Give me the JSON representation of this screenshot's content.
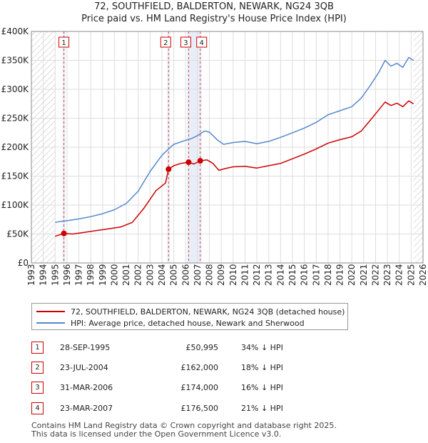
{
  "title_line1": "72, SOUTHFIELD, BALDERTON, NEWARK, NG24 3QB",
  "title_line2": "Price paid vs. HM Land Registry's House Price Index (HPI)",
  "colors": {
    "property": "#cc0000",
    "hpi": "#5588cc",
    "marker_box": "#cc0000",
    "shade": "#e8eef7"
  },
  "chart_data": {
    "type": "line",
    "xlim": [
      1993,
      2026
    ],
    "ylim": [
      0,
      400000
    ],
    "x_ticks": [
      "1993",
      "1994",
      "1995",
      "1996",
      "1997",
      "1998",
      "1999",
      "2000",
      "2001",
      "2002",
      "2003",
      "2004",
      "2005",
      "2006",
      "2007",
      "2008",
      "2009",
      "2010",
      "2011",
      "2012",
      "2013",
      "2014",
      "2015",
      "2016",
      "2017",
      "2018",
      "2019",
      "2020",
      "2021",
      "2022",
      "2023",
      "2024",
      "2025",
      "2026"
    ],
    "y_ticks": [
      {
        "value": 0,
        "label": "£0"
      },
      {
        "value": 50000,
        "label": "£50K"
      },
      {
        "value": 100000,
        "label": "£100K"
      },
      {
        "value": 150000,
        "label": "£150K"
      },
      {
        "value": 200000,
        "label": "£200K"
      },
      {
        "value": 250000,
        "label": "£250K"
      },
      {
        "value": 300000,
        "label": "£300K"
      },
      {
        "value": 350000,
        "label": "£350K"
      },
      {
        "value": 400000,
        "label": "£400K"
      }
    ],
    "hatched_ranges": [
      [
        1993,
        1995.0
      ],
      [
        2025.2,
        2026
      ]
    ],
    "series": [
      {
        "name": "72, SOUTHFIELD, BALDERTON, NEWARK, NG24 3QB (detached house)",
        "color": "#cc0000",
        "points": [
          [
            1995.0,
            46000
          ],
          [
            1995.74,
            50995
          ],
          [
            1996.5,
            50000
          ],
          [
            1997.5,
            53000
          ],
          [
            1998.5,
            56000
          ],
          [
            1999.5,
            59000
          ],
          [
            2000.5,
            62000
          ],
          [
            2001.5,
            70000
          ],
          [
            2002.5,
            95000
          ],
          [
            2003.5,
            125000
          ],
          [
            2004.3,
            138000
          ],
          [
            2004.56,
            162000
          ],
          [
            2005.0,
            168000
          ],
          [
            2005.6,
            172000
          ],
          [
            2006.25,
            174000
          ],
          [
            2006.7,
            171000
          ],
          [
            2007.23,
            176500
          ],
          [
            2007.8,
            178000
          ],
          [
            2008.3,
            172000
          ],
          [
            2008.8,
            160000
          ],
          [
            2009.3,
            163000
          ],
          [
            2010.0,
            166000
          ],
          [
            2011.0,
            167000
          ],
          [
            2012.0,
            164000
          ],
          [
            2013.0,
            168000
          ],
          [
            2014.0,
            172000
          ],
          [
            2015.0,
            180000
          ],
          [
            2016.0,
            188000
          ],
          [
            2017.0,
            197000
          ],
          [
            2018.0,
            207000
          ],
          [
            2019.0,
            213000
          ],
          [
            2020.0,
            218000
          ],
          [
            2020.8,
            228000
          ],
          [
            2021.5,
            245000
          ],
          [
            2022.3,
            265000
          ],
          [
            2022.8,
            278000
          ],
          [
            2023.3,
            272000
          ],
          [
            2023.8,
            276000
          ],
          [
            2024.3,
            270000
          ],
          [
            2024.8,
            280000
          ],
          [
            2025.2,
            275000
          ]
        ]
      },
      {
        "name": "HPI: Average price, detached house, Newark and Sherwood",
        "color": "#5588cc",
        "points": [
          [
            1995.0,
            70000
          ],
          [
            1995.5,
            72000
          ],
          [
            1996.0,
            73000
          ],
          [
            1997.0,
            76000
          ],
          [
            1998.0,
            80000
          ],
          [
            1999.0,
            85000
          ],
          [
            2000.0,
            92000
          ],
          [
            2001.0,
            103000
          ],
          [
            2002.0,
            124000
          ],
          [
            2003.0,
            158000
          ],
          [
            2004.0,
            186000
          ],
          [
            2004.56,
            197000
          ],
          [
            2005.0,
            205000
          ],
          [
            2006.0,
            212000
          ],
          [
            2006.5,
            215000
          ],
          [
            2007.0,
            220000
          ],
          [
            2007.6,
            228000
          ],
          [
            2008.0,
            226000
          ],
          [
            2008.7,
            212000
          ],
          [
            2009.2,
            205000
          ],
          [
            2010.0,
            208000
          ],
          [
            2011.0,
            210000
          ],
          [
            2012.0,
            206000
          ],
          [
            2013.0,
            210000
          ],
          [
            2014.0,
            217000
          ],
          [
            2015.0,
            225000
          ],
          [
            2016.0,
            233000
          ],
          [
            2017.0,
            243000
          ],
          [
            2018.0,
            256000
          ],
          [
            2019.0,
            263000
          ],
          [
            2020.0,
            270000
          ],
          [
            2020.8,
            285000
          ],
          [
            2021.5,
            305000
          ],
          [
            2022.3,
            330000
          ],
          [
            2022.8,
            350000
          ],
          [
            2023.3,
            340000
          ],
          [
            2023.8,
            345000
          ],
          [
            2024.3,
            338000
          ],
          [
            2024.8,
            355000
          ],
          [
            2025.2,
            350000
          ]
        ]
      }
    ],
    "sale_points": [
      {
        "label": "1",
        "x": 1995.74,
        "y": 50995
      },
      {
        "label": "2",
        "x": 2004.56,
        "y": 162000
      },
      {
        "label": "3",
        "x": 2006.25,
        "y": 174000
      },
      {
        "label": "4",
        "x": 2007.23,
        "y": 176500
      }
    ]
  },
  "legend": {
    "property_label": "72, SOUTHFIELD, BALDERTON, NEWARK, NG24 3QB (detached house)",
    "hpi_label": "HPI: Average price, detached house, Newark and Sherwood"
  },
  "sales": [
    {
      "num": "1",
      "date": "28-SEP-1995",
      "price": "£50,995",
      "hpi": "34% ↓ HPI"
    },
    {
      "num": "2",
      "date": "23-JUL-2004",
      "price": "£162,000",
      "hpi": "18% ↓ HPI"
    },
    {
      "num": "3",
      "date": "31-MAR-2006",
      "price": "£174,000",
      "hpi": "16% ↓ HPI"
    },
    {
      "num": "4",
      "date": "23-MAR-2007",
      "price": "£176,500",
      "hpi": "21% ↓ HPI"
    }
  ],
  "footer_line1": "Contains HM Land Registry data © Crown copyright and database right 2025.",
  "footer_line2": "This data is licensed under the Open Government Licence v3.0."
}
